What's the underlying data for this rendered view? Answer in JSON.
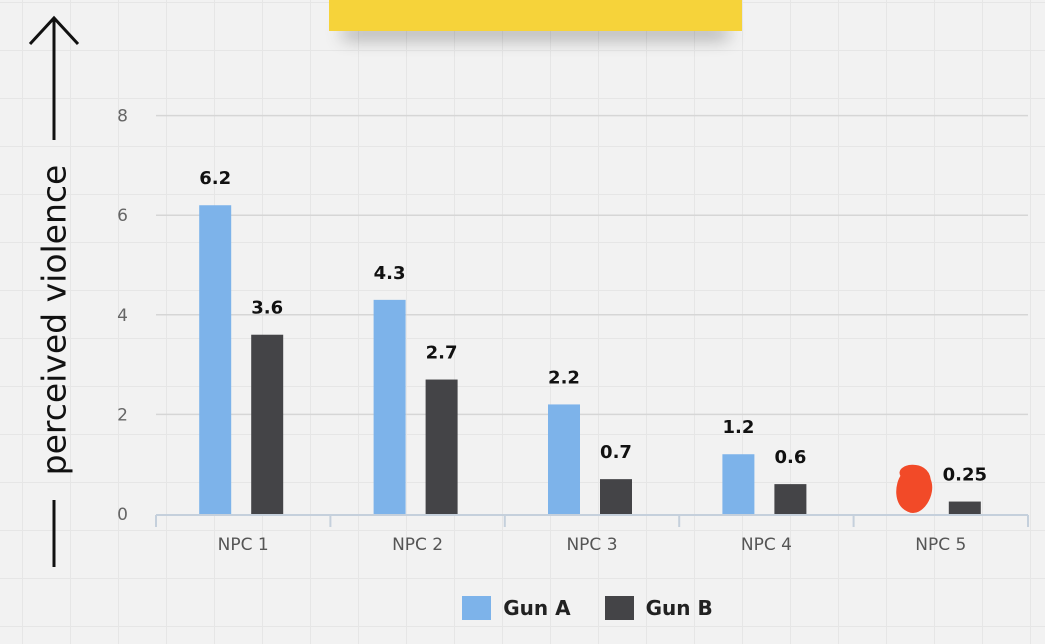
{
  "colors": {
    "gun_a": "#7db3ea",
    "gun_b": "#444447",
    "marker": "#f24a28",
    "sticky": "#f6d33a"
  },
  "chart_data": {
    "type": "bar",
    "title": "",
    "xlabel": "",
    "ylabel": "perceived violence",
    "ylim": [
      0,
      9
    ],
    "yticks": [
      0,
      2,
      4,
      6,
      8
    ],
    "grid": true,
    "legend_position": "bottom",
    "categories": [
      "NPC 1",
      "NPC 2",
      "NPC 3",
      "NPC 4",
      "NPC 5"
    ],
    "series": [
      {
        "name": "Gun A",
        "values": [
          6.2,
          4.3,
          2.2,
          1.2,
          null
        ],
        "labels": [
          "6.2",
          "4.3",
          "2.2",
          "1.2",
          ""
        ]
      },
      {
        "name": "Gun B",
        "values": [
          3.6,
          2.7,
          0.7,
          0.6,
          0.25
        ],
        "labels": [
          "3.6",
          "2.7",
          "0.7",
          "0.6",
          "0.25"
        ]
      }
    ],
    "annotations": [
      {
        "type": "red-scribble",
        "category": "NPC 5",
        "series": "Gun A"
      }
    ]
  }
}
